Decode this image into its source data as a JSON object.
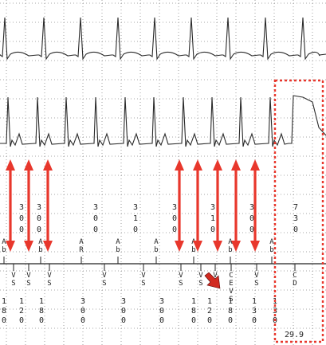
{
  "display": {
    "grid_style": "dotted",
    "grid_color": "#8a8a8a",
    "trace_color": "#2a2a2a",
    "arrow_color": "#e8372c",
    "box_color": "#e8372c",
    "cursor_color": "#d12a20"
  },
  "channels": [
    {
      "id": "upper-ecg-trace",
      "complexes": 9
    },
    {
      "id": "lower-egm-trace",
      "complexes": 11
    }
  ],
  "interval_labels": [
    "300",
    "300",
    "300",
    "310",
    "300",
    "310",
    "300",
    "730"
  ],
  "atrial_markers": [
    "A b",
    "A b",
    "A R",
    "A b",
    "A b",
    "A b",
    "A b",
    "A b"
  ],
  "ventricular_markers": [
    "V S",
    "V S",
    "V S",
    "V S",
    "V S",
    "V S",
    "V S",
    "V S",
    "C E V S",
    "V S",
    "C D"
  ],
  "vv_intervals": [
    "180",
    "120",
    "180",
    "300",
    "300",
    "300",
    "180",
    "120",
    "180",
    "130",
    "130"
  ],
  "annotation": {
    "box_value": "29.9"
  }
}
